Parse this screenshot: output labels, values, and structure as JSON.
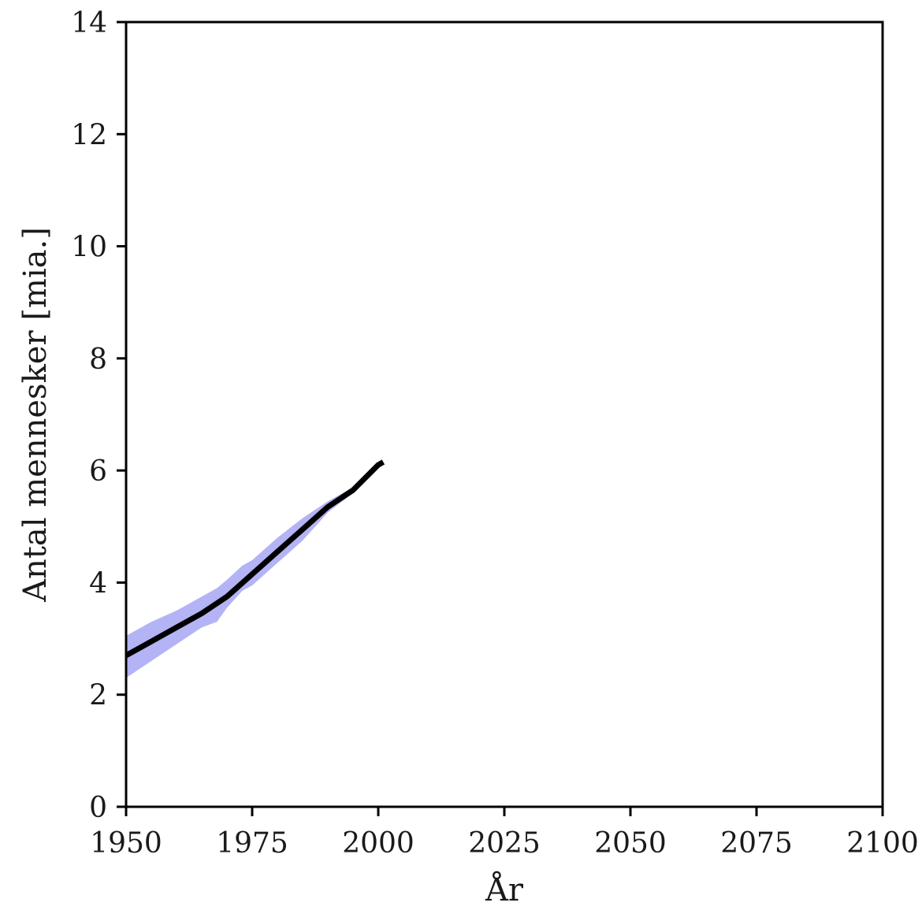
{
  "chart_data": {
    "type": "line",
    "xlabel": "År",
    "ylabel": "Antal mennesker [mia.]",
    "xlim": [
      1950,
      2100
    ],
    "ylim": [
      0,
      14
    ],
    "xticks": [
      1950,
      1975,
      2000,
      2025,
      2050,
      2075,
      2100
    ],
    "yticks": [
      0,
      2,
      4,
      6,
      8,
      10,
      12,
      14
    ],
    "grid": false,
    "colors": {
      "line": "#000000",
      "band": "#b3b3f5"
    },
    "series": [
      {
        "x": [
          1950,
          1955,
          1960,
          1965,
          1970,
          1975,
          1980,
          1985,
          1990,
          1995,
          2000,
          2001
        ],
        "y": [
          2.7,
          2.95,
          3.2,
          3.45,
          3.75,
          4.15,
          4.55,
          4.95,
          5.35,
          5.65,
          6.1,
          6.15
        ]
      }
    ],
    "band": {
      "x": [
        1950,
        1955,
        1960,
        1965,
        1968,
        1970,
        1973,
        1975,
        1980,
        1985,
        1990,
        1995
      ],
      "lower": [
        2.3,
        2.6,
        2.9,
        3.2,
        3.3,
        3.55,
        3.85,
        3.95,
        4.35,
        4.75,
        5.25,
        5.6
      ],
      "upper": [
        3.05,
        3.3,
        3.5,
        3.75,
        3.9,
        4.05,
        4.3,
        4.4,
        4.8,
        5.15,
        5.45,
        5.7
      ]
    }
  }
}
